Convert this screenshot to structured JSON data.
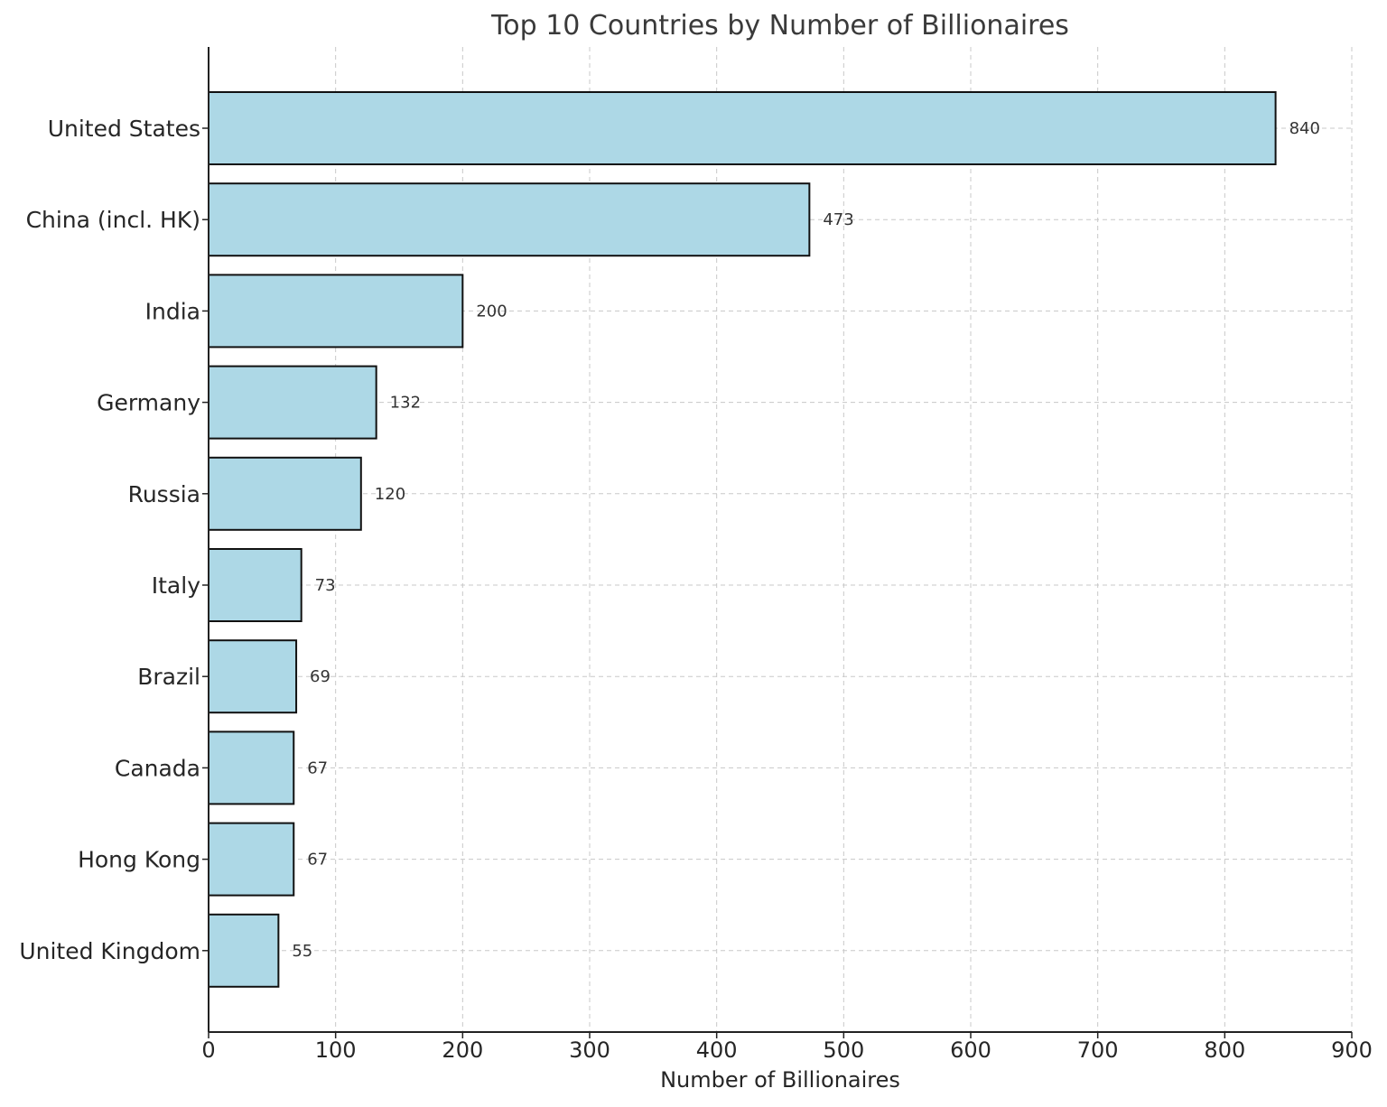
{
  "chart_data": {
    "type": "bar",
    "orientation": "horizontal",
    "title": "Top 10 Countries by Number of Billionaires",
    "xlabel": "Number of Billionaires",
    "ylabel": "",
    "categories": [
      "United States",
      "China (incl. HK)",
      "India",
      "Germany",
      "Russia",
      "Italy",
      "Brazil",
      "Canada",
      "Hong Kong",
      "United Kingdom"
    ],
    "values": [
      840,
      473,
      200,
      132,
      120,
      73,
      69,
      67,
      67,
      55
    ],
    "xlim": [
      0,
      900
    ],
    "xticks": [
      0,
      100,
      200,
      300,
      400,
      500,
      600,
      700,
      800,
      900
    ],
    "grid": true,
    "bar_color": "#add8e6",
    "bar_edge_color": "#111111"
  }
}
